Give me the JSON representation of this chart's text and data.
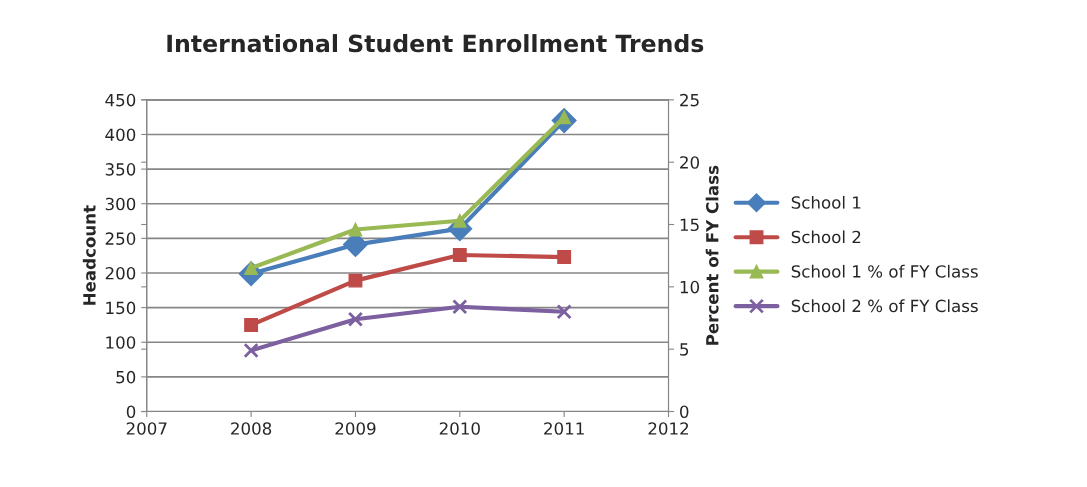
{
  "chart_data": {
    "type": "line",
    "title": "International Student Enrollment Trends",
    "ylabel": "Headcount",
    "y2label": "Percent of FY Class",
    "x": [
      2008,
      2009,
      2010,
      2011
    ],
    "series": [
      {
        "name": "School 1",
        "color": "#4a7ebb",
        "marker": "diamond",
        "values": [
          199,
          241,
          264,
          420
        ]
      },
      {
        "name": "School 2",
        "color": "#be4b48",
        "marker": "square",
        "values": [
          125,
          189,
          226,
          223
        ]
      },
      {
        "name": "School 1 % of FY Class",
        "color": "#98b954",
        "marker": "triangle",
        "axis": "y2",
        "values": [
          11.5,
          14.6,
          15.3,
          23.6
        ]
      },
      {
        "name": "School 2 % of FY Class",
        "color": "#7d60a0",
        "marker": "cross",
        "axis": "y2",
        "values": [
          4.9,
          7.4,
          8.4,
          8.0
        ]
      }
    ],
    "xlim": [
      2007,
      2012
    ],
    "xticks": [
      2007,
      2008,
      2009,
      2010,
      2011,
      2012
    ],
    "ylim": [
      0,
      450
    ],
    "yticks": [
      0,
      50,
      100,
      150,
      200,
      250,
      300,
      350,
      400,
      450
    ],
    "y2lim": [
      0,
      25
    ],
    "y2ticks": [
      0,
      5,
      10,
      15,
      20,
      25
    ],
    "grid": "y",
    "legend": "right",
    "line_style": "solid"
  }
}
